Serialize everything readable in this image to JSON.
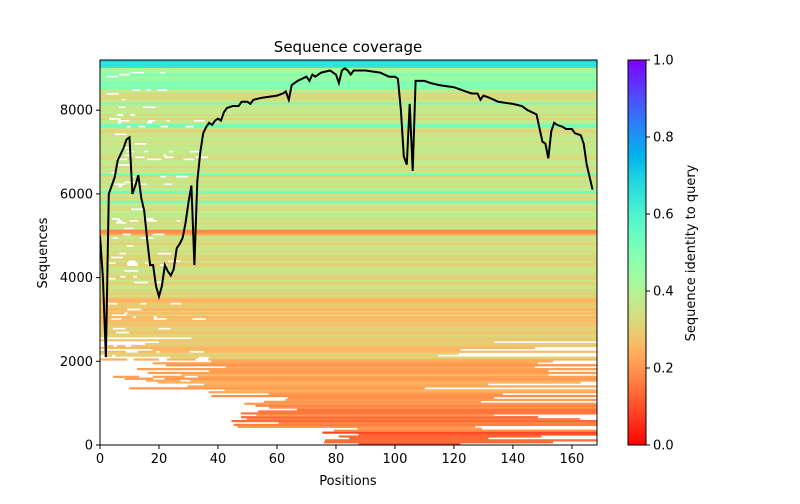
{
  "chart_data": {
    "type": "heatmap",
    "title": "Sequence coverage",
    "xlabel": "Positions",
    "ylabel": "Sequences",
    "xlim": [
      0,
      168.5
    ],
    "ylim": [
      0,
      9200
    ],
    "xticks": [
      0,
      20,
      40,
      60,
      80,
      100,
      120,
      140,
      160
    ],
    "yticks": [
      0,
      2000,
      4000,
      6000,
      8000
    ],
    "colorbar": {
      "label": "Sequence identity to query",
      "colormap": "rainbow_r",
      "range": [
        0,
        1
      ],
      "ticks": [
        "0.0",
        "0.2",
        "0.4",
        "0.6",
        "0.8",
        "1.0"
      ]
    },
    "identity_bands": [
      {
        "from": 0,
        "to": 300,
        "identity": 0.12
      },
      {
        "from": 300,
        "to": 1000,
        "identity": 0.17
      },
      {
        "from": 1000,
        "to": 2000,
        "identity": 0.22
      },
      {
        "from": 2000,
        "to": 3500,
        "identity": 0.28
      },
      {
        "from": 3500,
        "to": 5000,
        "identity": 0.33
      },
      {
        "from": 5000,
        "to": 5120,
        "identity": 0.2
      },
      {
        "from": 5120,
        "to": 8500,
        "identity": 0.35
      },
      {
        "from": 8500,
        "to": 9000,
        "identity": 0.45
      },
      {
        "from": 9000,
        "to": 9200,
        "identity": 0.68
      }
    ],
    "coverage_line": {
      "color": "#000000",
      "x": [
        0,
        1,
        2,
        3,
        5,
        6,
        8,
        9,
        10,
        11,
        12,
        13,
        14,
        15,
        16,
        17,
        18,
        19,
        20,
        21,
        22,
        23,
        24,
        25,
        26,
        27,
        28,
        29,
        30,
        31,
        32,
        33,
        34,
        35,
        36,
        37,
        38,
        39,
        40,
        41,
        42,
        43,
        45,
        47,
        48,
        50,
        51,
        52,
        55,
        60,
        62,
        63,
        64,
        65,
        67,
        70,
        71,
        72,
        73,
        75,
        78,
        80,
        81,
        82,
        83,
        84,
        85,
        86,
        90,
        95,
        98,
        100,
        101,
        102,
        103,
        104,
        105,
        106,
        107,
        110,
        112,
        115,
        120,
        124,
        126,
        128,
        129,
        130,
        132,
        135,
        140,
        143,
        145,
        148,
        150,
        151,
        152,
        153,
        154,
        155,
        157,
        158,
        160,
        161,
        163,
        164,
        165,
        167
      ],
      "y": [
        5000,
        4000,
        2100,
        6000,
        6400,
        6800,
        7100,
        7300,
        7350,
        6000,
        6200,
        6450,
        5900,
        5600,
        4900,
        4300,
        4300,
        3800,
        3550,
        3800,
        4300,
        4150,
        4050,
        4200,
        4700,
        4800,
        4950,
        5300,
        5800,
        6200,
        4300,
        6300,
        7000,
        7450,
        7600,
        7700,
        7650,
        7750,
        7800,
        7750,
        7950,
        8050,
        8100,
        8100,
        8200,
        8200,
        8150,
        8250,
        8300,
        8350,
        8400,
        8450,
        8250,
        8600,
        8700,
        8800,
        8700,
        8850,
        8800,
        8900,
        8950,
        8850,
        8650,
        8950,
        9000,
        8950,
        8850,
        8950,
        8950,
        8900,
        8800,
        8800,
        8750,
        8000,
        6900,
        6700,
        8150,
        6550,
        8700,
        8700,
        8650,
        8600,
        8550,
        8450,
        8400,
        8400,
        8250,
        8350,
        8300,
        8200,
        8150,
        8100,
        8000,
        7900,
        7250,
        7200,
        6850,
        7500,
        7700,
        7650,
        7600,
        7550,
        7550,
        7450,
        7400,
        7200,
        6700,
        6100
      ]
    }
  }
}
